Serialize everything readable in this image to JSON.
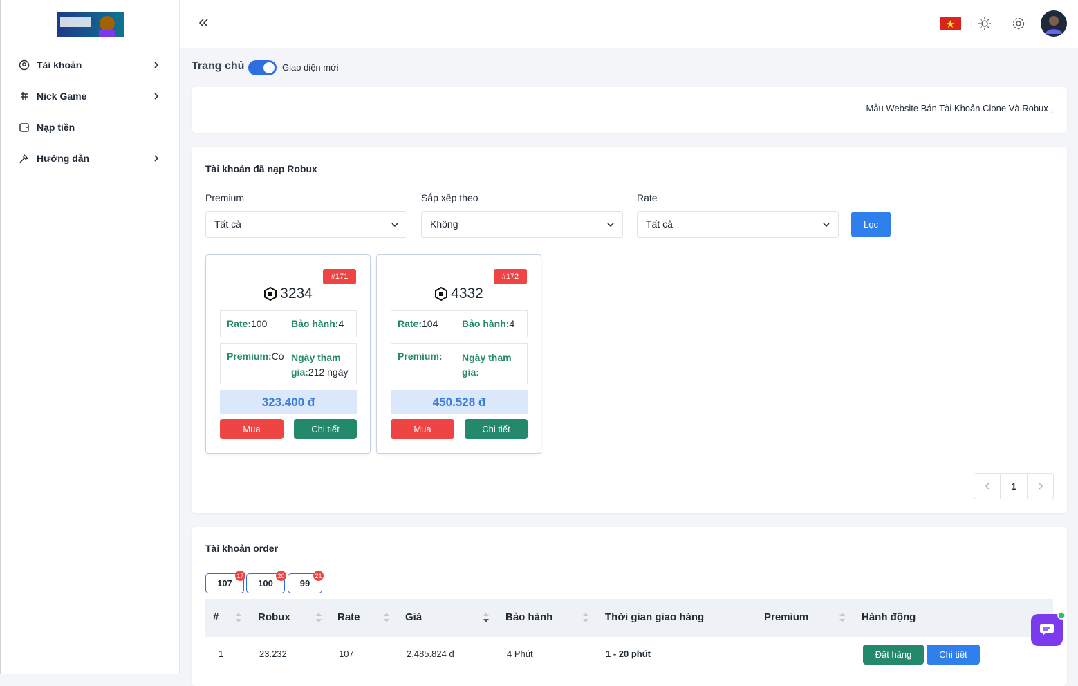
{
  "sidebar": {
    "menu": [
      "Tài khoản",
      "Nick Game",
      "Nạp tiền",
      "Hướng dẫn"
    ]
  },
  "header": {
    "breadcrumb": "Trang chủ",
    "toggle_label": "Giao diện mới"
  },
  "notice": "Mẫu Website Bán Tài Khoản Clone Và Robux ,",
  "robux_accounts": {
    "title": "Tài khoản đã nạp Robux",
    "filters": [
      {
        "label": "Premium",
        "value": "Tất cả"
      },
      {
        "label": "Sắp xếp theo",
        "value": "Không"
      },
      {
        "label": "Rate",
        "value": "Tất cả"
      }
    ],
    "filter_button": "Lọc",
    "card_labels": {
      "rate": "Rate:",
      "warranty": "Bảo hành:",
      "premium": "Premium:",
      "joined": "Ngày tham gia:",
      "buy": "Mua",
      "detail": "Chi tiết"
    },
    "cards": [
      {
        "id": "#171",
        "robux": "3234",
        "rate": "100",
        "warranty": "4",
        "premium": "Có",
        "joined": "212 ngày",
        "price": "323.400 đ"
      },
      {
        "id": "#172",
        "robux": "4332",
        "rate": "104",
        "warranty": "4",
        "price": "450.528 đ"
      }
    ],
    "pagination": {
      "current": "1"
    }
  },
  "order_accounts": {
    "title": "Tài khoản order",
    "tabs": [
      {
        "label": "107",
        "badge": "17"
      },
      {
        "label": "100",
        "badge": "20"
      },
      {
        "label": "99",
        "badge": "21"
      }
    ],
    "columns": [
      "#",
      "Robux",
      "Rate",
      "Giá",
      "Bảo hành",
      "Thời gian giao hàng",
      "Premium",
      "Hành động"
    ],
    "rows": [
      {
        "cells": [
          "1",
          "23.232",
          "107",
          "2.485.824 đ",
          "4 Phút",
          "1 - 20 phút"
        ],
        "actions": [
          "Đặt hàng",
          "Chi tiết"
        ]
      }
    ]
  }
}
